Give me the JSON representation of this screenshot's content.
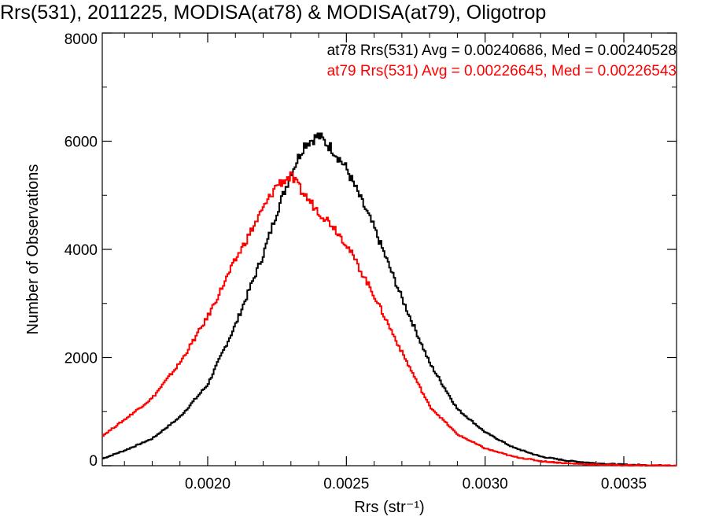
{
  "chart_data": {
    "type": "line",
    "title": "Rrs(531), 2011225, MODISA(at78) & MODISA(at79), Oligotrop",
    "xlabel": "Rrs (str⁻¹)",
    "ylabel": "Number of Observations",
    "xlim": [
      0.00162,
      0.00369
    ],
    "ylim": [
      0,
      8000
    ],
    "xticks": [
      0.002,
      0.0025,
      0.003,
      0.0035
    ],
    "xtick_labels": [
      "0.0020",
      "0.0025",
      "0.0030",
      "0.0035"
    ],
    "yticks": [
      0,
      2000,
      4000,
      6000,
      8000
    ],
    "ytick_labels": [
      "0",
      "2000",
      "4000",
      "6000",
      "8000"
    ],
    "grid": false,
    "legend_placement": "top-right",
    "series": [
      {
        "name": "at78",
        "color": "#000000",
        "legend": "at78 Rrs(531) Avg = 0.00240686, Med = 0.00240528",
        "x": [
          0.00162,
          0.0017,
          0.0018,
          0.0019,
          0.002,
          0.0021,
          0.0022,
          0.00225,
          0.0023,
          0.00235,
          0.0024,
          0.00245,
          0.0025,
          0.0026,
          0.0027,
          0.0028,
          0.0029,
          0.003,
          0.0031,
          0.0032,
          0.0033,
          0.0034,
          0.0035,
          0.0036,
          0.00369
        ],
        "values": [
          130,
          280,
          500,
          900,
          1500,
          2600,
          3900,
          4700,
          5400,
          5950,
          6100,
          5850,
          5500,
          4400,
          3100,
          1900,
          1050,
          620,
          340,
          170,
          90,
          45,
          20,
          8,
          3
        ]
      },
      {
        "name": "at79",
        "color": "#ff0000",
        "legend": "at79 Rrs(531) Avg = 0.00226645, Med = 0.00226543",
        "x": [
          0.00162,
          0.0017,
          0.0018,
          0.0019,
          0.002,
          0.0021,
          0.0022,
          0.00225,
          0.0023,
          0.00235,
          0.0024,
          0.00245,
          0.0025,
          0.0026,
          0.0027,
          0.0028,
          0.0029,
          0.003,
          0.0031,
          0.0032,
          0.0033,
          0.0034,
          0.0035,
          0.0036,
          0.00369
        ],
        "values": [
          550,
          850,
          1250,
          1900,
          2750,
          3800,
          4750,
          5200,
          5350,
          5000,
          4700,
          4450,
          4100,
          3150,
          2100,
          1100,
          580,
          320,
          170,
          85,
          42,
          20,
          9,
          4,
          1
        ]
      }
    ]
  }
}
